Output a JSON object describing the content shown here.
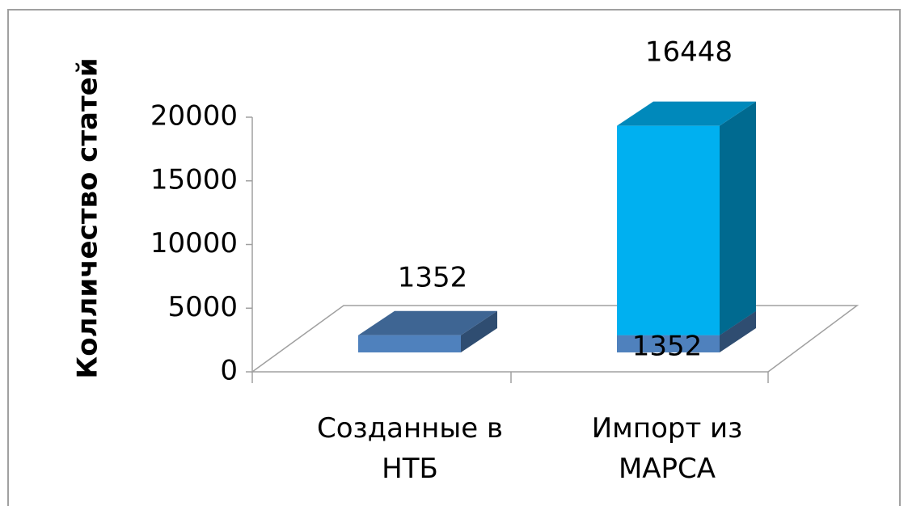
{
  "chart_data": {
    "type": "bar3d_stacked",
    "y_label": "Колличество статей",
    "categories": [
      "Созданные в НТБ",
      "Импорт из МАРСА"
    ],
    "series": [
      {
        "color": "#4f81bd",
        "values": [
          1352,
          1352
        ]
      },
      {
        "color": "#00b0f0",
        "values": [
          null,
          16448
        ]
      }
    ],
    "ylim": [
      0,
      20000
    ],
    "yticks": [
      0,
      5000,
      10000,
      15000,
      20000
    ]
  }
}
